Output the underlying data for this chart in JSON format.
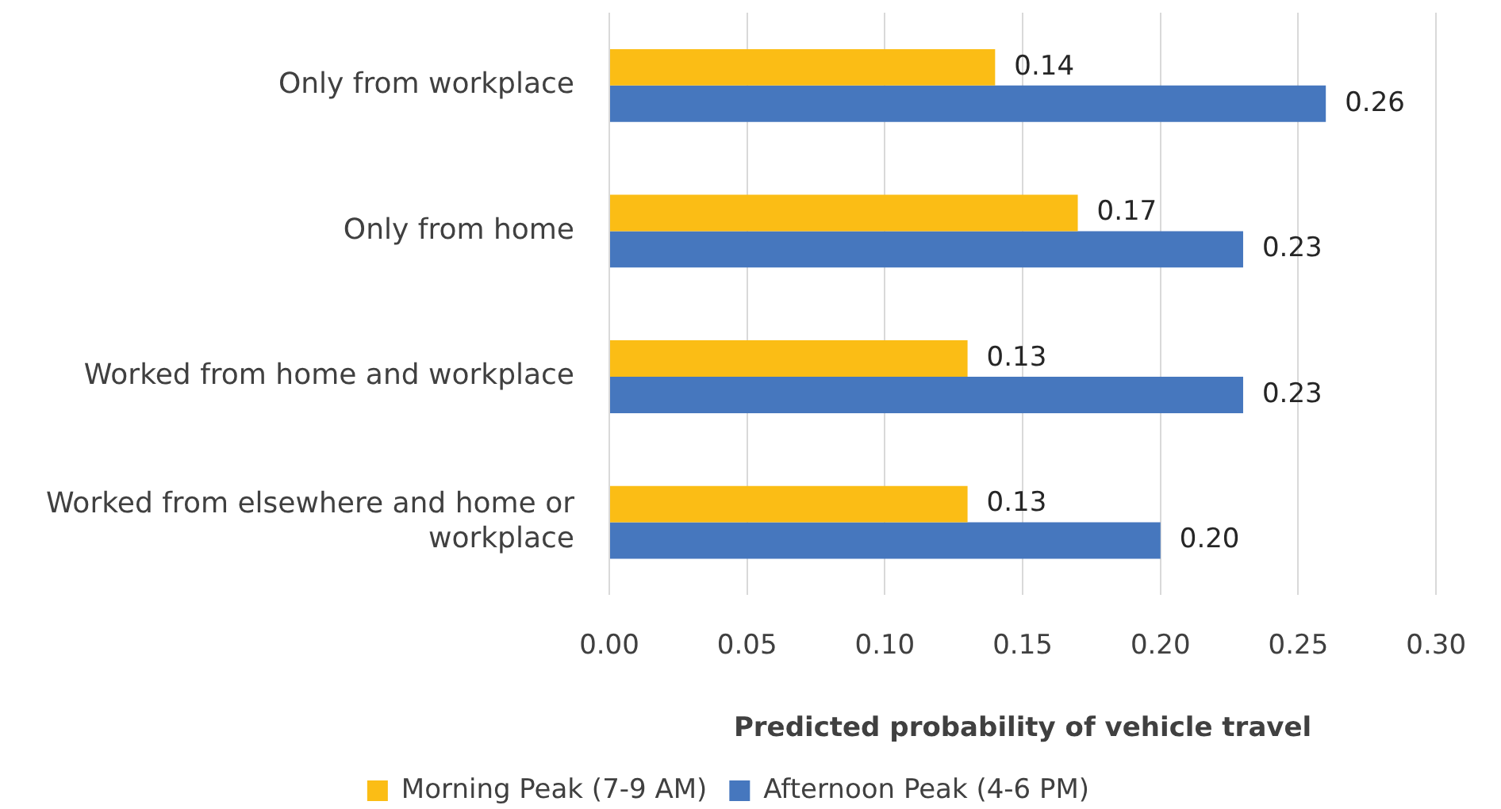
{
  "chart_data": {
    "type": "bar",
    "orientation": "horizontal",
    "categories": [
      "Only from workplace",
      "Only from home",
      "Worked from home and workplace",
      "Worked from elsewhere and home or workplace"
    ],
    "series": [
      {
        "name": "Morning Peak (7-9 AM)",
        "color": "#fbbd15",
        "values": [
          0.14,
          0.17,
          0.13,
          0.13
        ],
        "value_labels": [
          "0.14",
          "0.17",
          "0.13",
          "0.13"
        ]
      },
      {
        "name": "Afternoon Peak (4-6 PM)",
        "color": "#4677be",
        "values": [
          0.26,
          0.23,
          0.23,
          0.2
        ],
        "value_labels": [
          "0.26",
          "0.23",
          "0.23",
          "0.20"
        ]
      }
    ],
    "xlabel": "Predicted probability of vehicle travel",
    "xlim": [
      0,
      0.3
    ],
    "xticks": [
      {
        "value": 0,
        "label": "0.00"
      },
      {
        "value": 0.05,
        "label": "0.05"
      },
      {
        "value": 0.1,
        "label": "0.10"
      },
      {
        "value": 0.15,
        "label": "0.15"
      },
      {
        "value": 0.2,
        "label": "0.20"
      },
      {
        "value": 0.25,
        "label": "0.25"
      },
      {
        "value": 0.3,
        "label": "0.30"
      }
    ],
    "grid": "x",
    "legend": "bottom"
  }
}
